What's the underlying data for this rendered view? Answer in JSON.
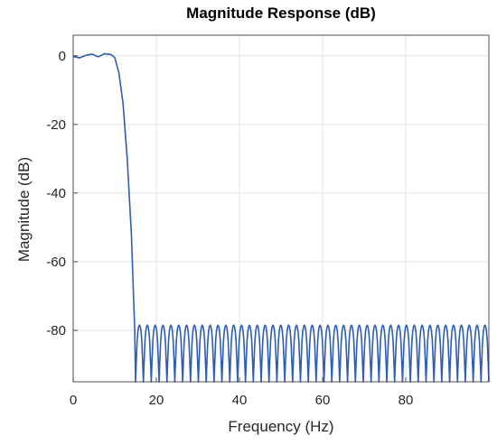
{
  "chart_data": {
    "type": "line",
    "title": "Magnitude Response (dB)",
    "xlabel": "Frequency (Hz)",
    "ylabel": "Magnitude (dB)",
    "xlim": [
      0,
      100
    ],
    "ylim": [
      -95,
      6
    ],
    "xticks": [
      0,
      20,
      40,
      60,
      80
    ],
    "yticks": [
      0,
      -20,
      -40,
      -60,
      -80
    ],
    "grid": true,
    "line_color": "#2E5DB3",
    "passband": {
      "edge_hz": 10,
      "ripple_db": 0.8,
      "ripples": [
        [
          0,
          -0.2
        ],
        [
          1.5,
          -0.6
        ],
        [
          3,
          0.1
        ],
        [
          4.5,
          0.5
        ],
        [
          6,
          -0.3
        ],
        [
          7.5,
          0.6
        ],
        [
          9,
          0.4
        ],
        [
          10,
          -0.5
        ]
      ]
    },
    "transition": {
      "start_hz": 10,
      "end_hz": 15,
      "points": [
        [
          10,
          -0.5
        ],
        [
          11,
          -5
        ],
        [
          12,
          -14
        ],
        [
          13,
          -30
        ],
        [
          14,
          -52
        ],
        [
          14.8,
          -80
        ],
        [
          15,
          -95
        ]
      ]
    },
    "stopband": {
      "start_hz": 15,
      "peak_db": -78.5,
      "floor_db": -95,
      "lobe_count": 45
    }
  }
}
